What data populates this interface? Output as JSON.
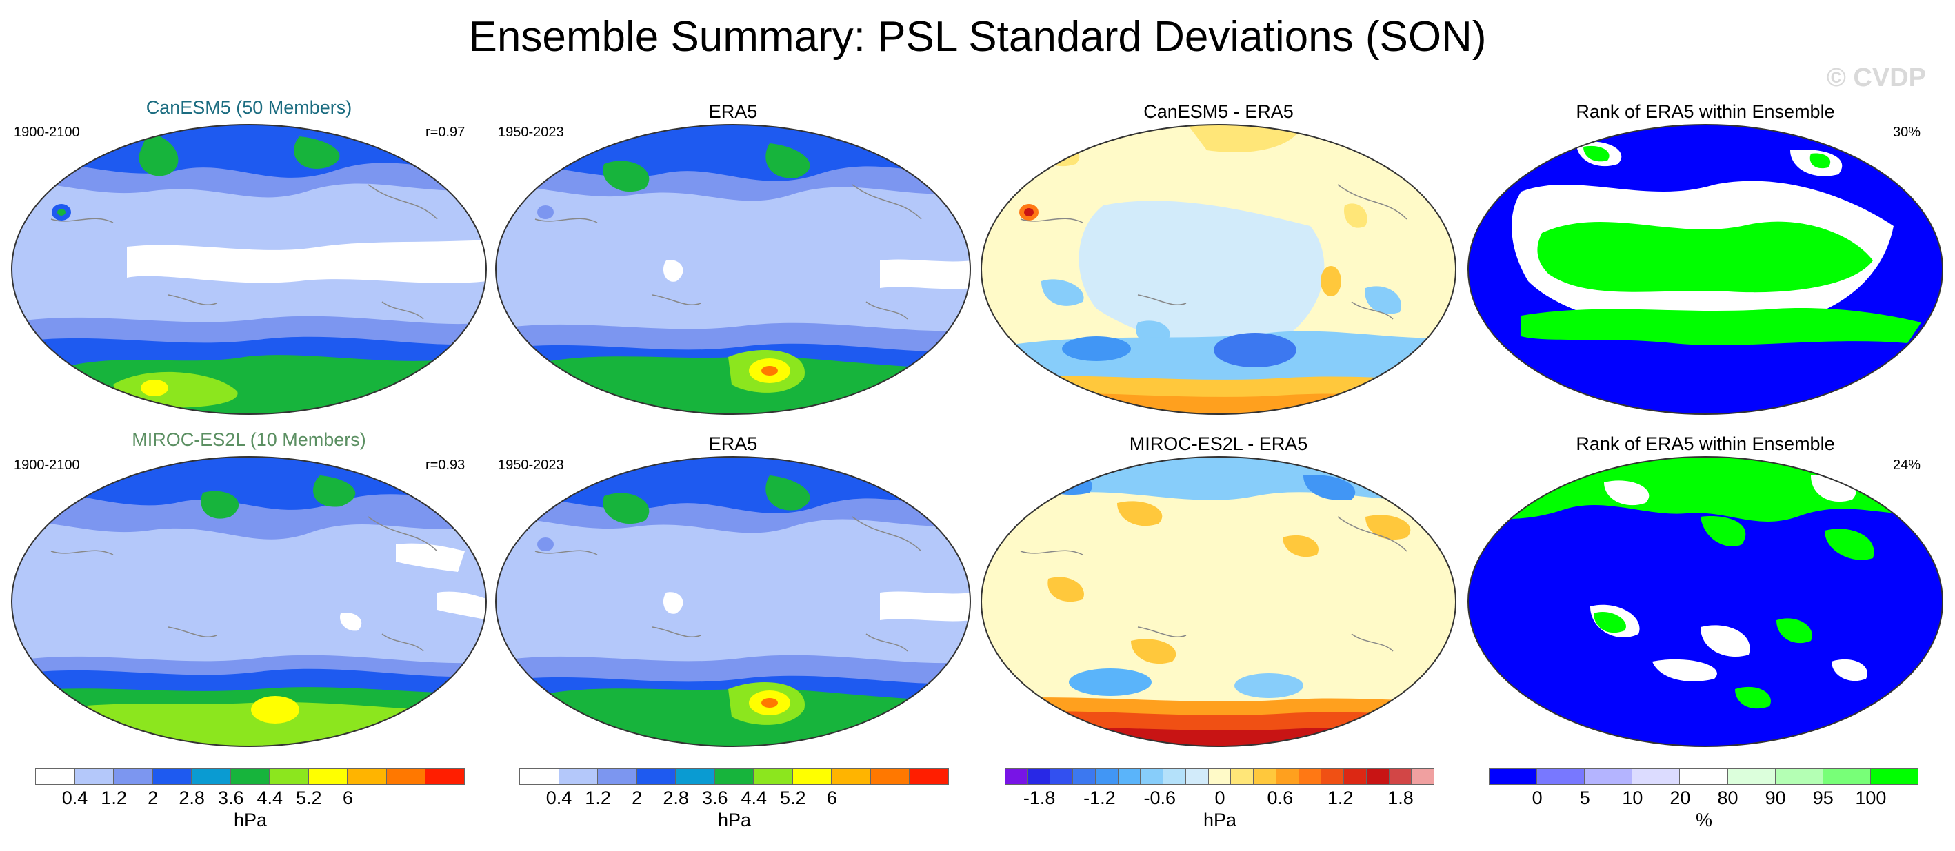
{
  "title": "Ensemble Summary: PSL Standard Deviations (SON)",
  "watermark": "© CVDP",
  "rows": [
    {
      "model": {
        "title": "CanESM5 (50 Members)",
        "title_color": "#1b6c80",
        "period": "1900-2100",
        "corr": "r=0.97"
      },
      "obs": {
        "title": "ERA5",
        "period": "1950-2023"
      },
      "diff": {
        "title": "CanESM5 - ERA5"
      },
      "rank": {
        "title": "Rank of ERA5 within Ensemble",
        "pct": "30%"
      }
    },
    {
      "model": {
        "title": "MIROC-ES2L (10 Members)",
        "title_color": "#5b8f62",
        "period": "1900-2100",
        "corr": "r=0.93"
      },
      "obs": {
        "title": "ERA5",
        "period": "1950-2023"
      },
      "diff": {
        "title": "MIROC-ES2L - ERA5"
      },
      "rank": {
        "title": "Rank of ERA5 within Ensemble",
        "pct": "24%"
      }
    }
  ],
  "colorbars": {
    "stddev": {
      "colors": [
        "#ffffff",
        "#b4c8fa",
        "#7c96f0",
        "#1e5af0",
        "#0a9bd2",
        "#17b43c",
        "#8ce61e",
        "#ffff00",
        "#ffb400",
        "#ff7800",
        "#ff1e00"
      ],
      "labels": [
        "0.4",
        "1.2",
        "2",
        "2.8",
        "3.6",
        "4.4",
        "5.2",
        "6"
      ],
      "unit": "hPa"
    },
    "diff": {
      "colors": [
        "#7814e6",
        "#2828e6",
        "#3250f0",
        "#3c78f0",
        "#4196f5",
        "#5ab4fa",
        "#87cdfa",
        "#b4e1fa",
        "#d2ebfa",
        "#fffac8",
        "#ffe678",
        "#ffc83c",
        "#ffa01e",
        "#ff7814",
        "#f05014",
        "#dc2814",
        "#c81414",
        "#d24646",
        "#f0a0a0"
      ],
      "labels": [
        "-1.8",
        "-1.2",
        "-0.6",
        "0",
        "0.6",
        "1.2",
        "1.8"
      ],
      "unit": "hPa"
    },
    "rank": {
      "colors": [
        "#0000ff",
        "#7878ff",
        "#b4b4ff",
        "#dcdcff",
        "#ffffff",
        "#dcffdc",
        "#b4ffb4",
        "#78ff78",
        "#00ff00"
      ],
      "labels": [
        "0",
        "5",
        "10",
        "20",
        "80",
        "90",
        "95",
        "100"
      ],
      "unit": "%"
    }
  }
}
